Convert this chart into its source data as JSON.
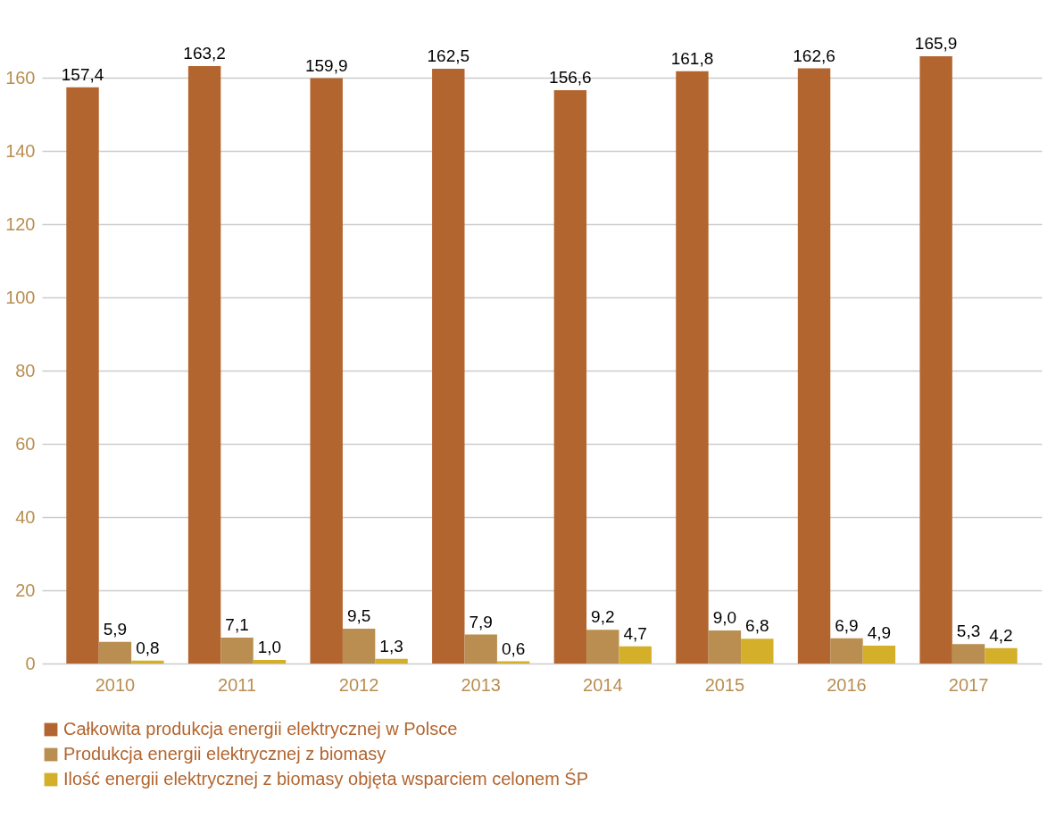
{
  "chart_data": {
    "type": "bar",
    "categories": [
      "2010",
      "2011",
      "2012",
      "2013",
      "2014",
      "2015",
      "2016",
      "2017"
    ],
    "series": [
      {
        "name": "Całkowita produkcja energii elektrycznej w Polsce",
        "color": "#b3652f",
        "values": [
          157.4,
          163.2,
          159.9,
          162.5,
          156.6,
          161.8,
          162.6,
          165.9
        ],
        "value_labels": [
          "157,4",
          "163,2",
          "159,9",
          "162,5",
          "156,6",
          "161,8",
          "162,6",
          "165,9"
        ]
      },
      {
        "name": "Produkcja energii elektrycznej z biomasy",
        "color": "#b98e50",
        "values": [
          5.9,
          7.1,
          9.5,
          7.9,
          9.2,
          9.0,
          6.9,
          5.3
        ],
        "value_labels": [
          "5,9",
          "7,1",
          "9,5",
          "7,9",
          "9,2",
          "9,0",
          "6,9",
          "5,3"
        ]
      },
      {
        "name": "Ilość energii elektrycznej z biomasy objęta wsparciem celonem ŚP",
        "color": "#d4af2a",
        "values": [
          0.8,
          1.0,
          1.3,
          0.6,
          4.7,
          6.8,
          4.9,
          4.2
        ],
        "value_labels": [
          "0,8",
          "1,0",
          "1,3",
          "0,6",
          "4,7",
          "6,8",
          "4,9",
          "4,2"
        ]
      }
    ],
    "ylim": [
      0,
      165.9
    ],
    "yticks": [
      0,
      20,
      40,
      60,
      80,
      100,
      120,
      140,
      160
    ],
    "grid": "y",
    "legend": "bottom"
  }
}
